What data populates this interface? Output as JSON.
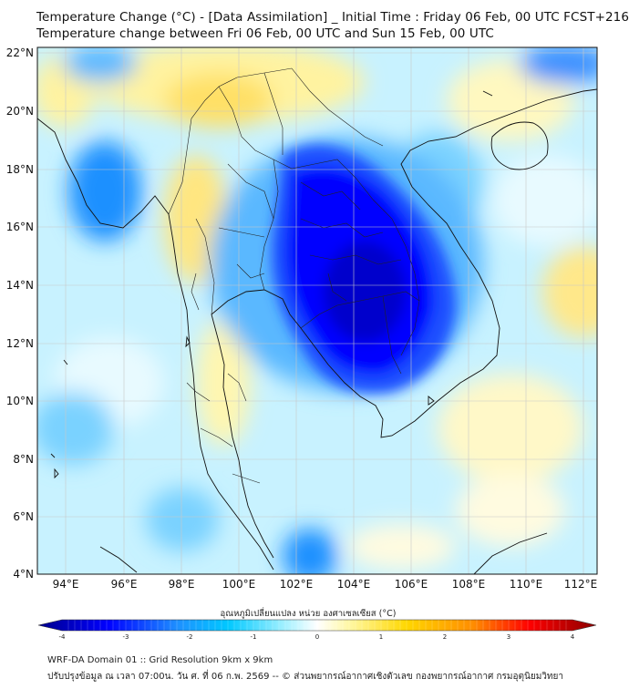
{
  "title_line1": "Temperature Change (°C) - [Data Assimilation] _ Initial Time : Friday 06 Feb, 00 UTC FCST+216",
  "title_line2": "Temperature change between Fri 06 Feb, 00 UTC and Sun 15 Feb, 00 UTC",
  "lat_labels": [
    "22°N",
    "20°N",
    "18°N",
    "16°N",
    "14°N",
    "12°N",
    "10°N",
    "8°N",
    "6°N",
    "4°N"
  ],
  "lon_labels": [
    "94°E",
    "96°E",
    "98°E",
    "100°E",
    "102°E",
    "104°E",
    "106°E",
    "108°E",
    "110°E",
    "112°E"
  ],
  "colorbar": {
    "title": "อุณหภูมิเปลี่ยนแปลง หน่วย องศาเซลเซียส (°C)",
    "ticks": [
      "-4",
      "-3",
      "-2",
      "-1",
      "0",
      "1",
      "2",
      "3",
      "4"
    ],
    "colors": {
      "dark_blue": "#00008c",
      "blue": "#0000ff",
      "sky": "#1e90ff",
      "cyan": "#00c8ff",
      "light_cyan": "#a0f0ff",
      "white": "#ffffff",
      "light_yellow": "#fff7a0",
      "yellow": "#ffd700",
      "orange": "#ff8c00",
      "red": "#ff0000",
      "dark_red": "#8b0000"
    }
  },
  "footer_line1": "WRF-DA Domain 01 :: Grid Resolution 9km x 9km",
  "footer_line2": "ปรับปรุงข้อมูล ณ เวลา 07:00น. วัน ศ. ที่ 06 ก.พ. 2569 -- © ส่วนพยากรณ์อากาศเชิงตัวเลข กองพยากรณ์อากาศ กรมอุตุนิยมวิทยา"
}
